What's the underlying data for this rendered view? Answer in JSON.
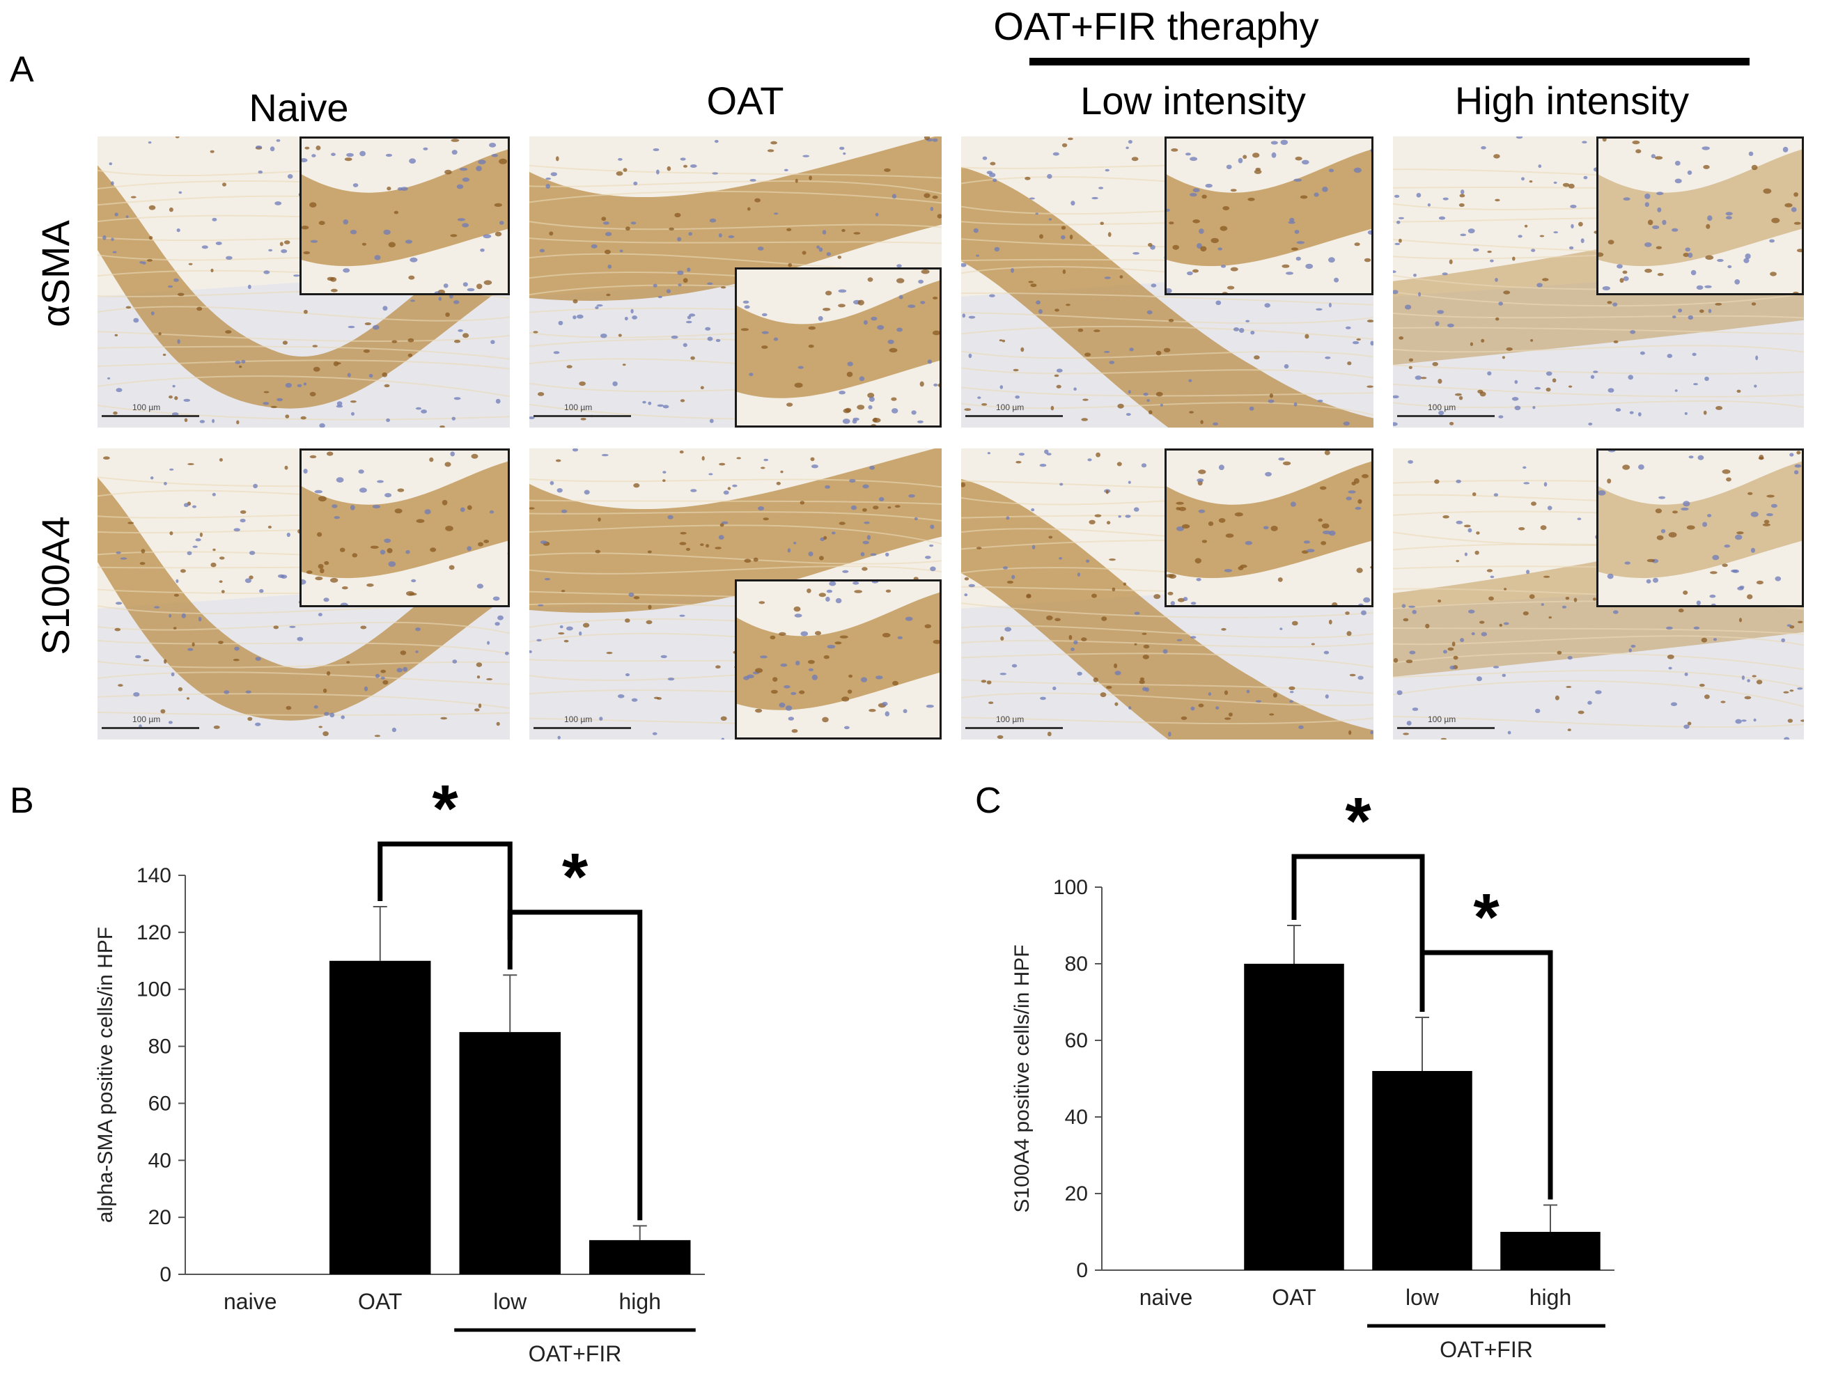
{
  "panel_a": {
    "letter": "A",
    "group_header": "OAT+FIR theraphy",
    "columns": [
      "Naive",
      "OAT",
      "Low intensity",
      "High intensity"
    ],
    "rows": [
      "αSMA",
      "S100A4"
    ],
    "scale_label": "100 µm",
    "colors": {
      "brown": "#b8893f",
      "hematoxylin": "#6e7bb8",
      "background": "#f4efe6"
    }
  },
  "panel_b": {
    "letter": "B",
    "chart_data": {
      "type": "bar",
      "categories": [
        "naive",
        "OAT",
        "low",
        "high"
      ],
      "values": [
        0,
        110,
        85,
        12
      ],
      "errors": [
        0,
        19,
        20,
        5
      ],
      "ylabel": "alpha-SMA positive cells/in HPF",
      "ylim": [
        0,
        140
      ],
      "yticks": [
        0,
        20,
        40,
        60,
        80,
        100,
        120,
        140
      ],
      "group_label": "OAT+FIR",
      "significance": [
        {
          "from": "OAT",
          "to": "low",
          "label": "*"
        },
        {
          "from": "low",
          "to": "high",
          "label": "*"
        }
      ],
      "bar_color": "#000000"
    }
  },
  "panel_c": {
    "letter": "C",
    "chart_data": {
      "type": "bar",
      "categories": [
        "naive",
        "OAT",
        "low",
        "high"
      ],
      "values": [
        0,
        80,
        52,
        10
      ],
      "errors": [
        0,
        10,
        14,
        7
      ],
      "ylabel": "S100A4 positive cells/in HPF",
      "ylim": [
        0,
        100
      ],
      "yticks": [
        0,
        20,
        40,
        60,
        80,
        100
      ],
      "group_label": "OAT+FIR",
      "significance": [
        {
          "from": "OAT",
          "to": "low",
          "label": "*"
        },
        {
          "from": "low",
          "to": "high",
          "label": "*"
        }
      ],
      "bar_color": "#000000"
    }
  }
}
